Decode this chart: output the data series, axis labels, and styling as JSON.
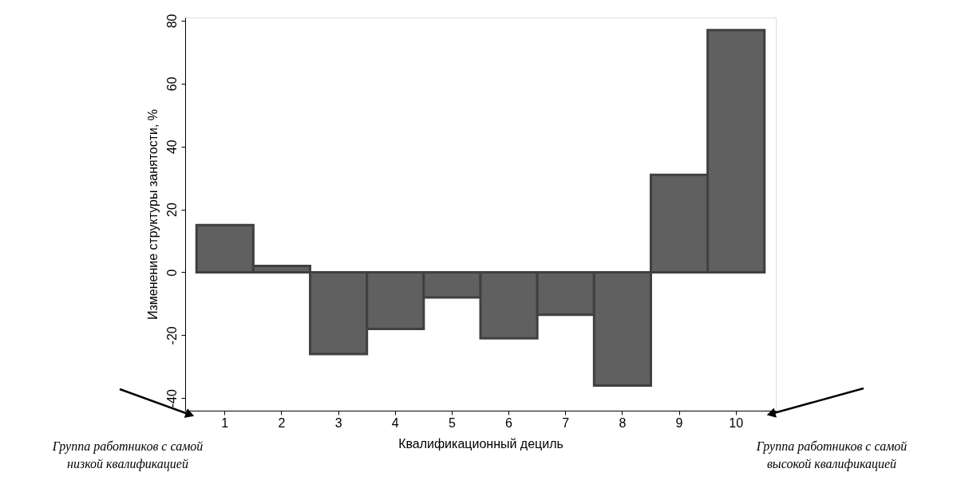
{
  "chart_data": {
    "type": "bar",
    "xlabel": "Квалификационный дециль",
    "ylabel": "Изменение структуры занятости, %",
    "categories": [
      "1",
      "2",
      "3",
      "4",
      "5",
      "6",
      "7",
      "8",
      "9",
      "10"
    ],
    "values": [
      15,
      2,
      -26,
      -18,
      -8,
      -21,
      -13.5,
      -36,
      31,
      77
    ],
    "color": "#606060",
    "ylim": [
      -44,
      81
    ],
    "yticks": [
      -40,
      -20,
      0,
      20,
      40,
      60,
      80
    ],
    "grid": false,
    "annotations": [
      "Группа работников с самой\nнизкой квалификацией",
      "Группа работников с самой\nвысокой квалификацией"
    ]
  }
}
